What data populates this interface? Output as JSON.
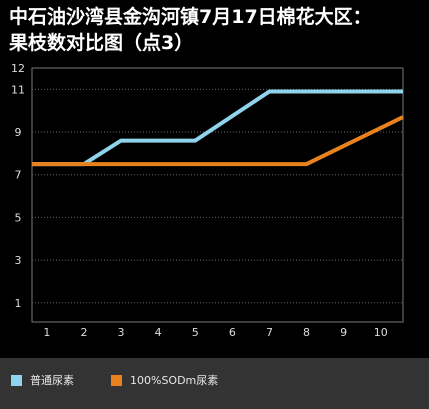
{
  "title": "中石油沙湾县金沟河镇7月17日棉花大区：果枝数对比图（点3）",
  "title_lines": [
    "中石油沙湾县金沟河镇7月17日棉花大区：",
    "果枝数对比图（点3）"
  ],
  "colors": {
    "background": "#000000",
    "plot_border": "#777777",
    "grid": "#666666",
    "series_a": "#8fd3ec",
    "series_b": "#e8821f",
    "tick_text": "#dddddd",
    "legend_bg": "#333333"
  },
  "chart_data": {
    "type": "line",
    "x": [
      1,
      2,
      3,
      4,
      5,
      6,
      7,
      8,
      9,
      10
    ],
    "x_tick_labels": [
      "1",
      "2",
      "3",
      "4",
      "5",
      "6",
      "7",
      "8",
      "9",
      "10"
    ],
    "y_tick_labels": [
      "1",
      "3",
      "5",
      "7",
      "9",
      "11",
      "12"
    ],
    "y_ticks": [
      1,
      3,
      5,
      7,
      9,
      11,
      12
    ],
    "ylim": [
      0.1,
      12
    ],
    "grid": "horizontal dashed",
    "legend_position": "bottom",
    "series": [
      {
        "name": "普通尿素",
        "color": "#8fd3ec",
        "points": [
          [
            0.6,
            7.5
          ],
          [
            2,
            7.5
          ],
          [
            3,
            8.6
          ],
          [
            5,
            8.6
          ],
          [
            7,
            10.9
          ],
          [
            10.6,
            10.9
          ]
        ]
      },
      {
        "name": "100%SODm尿素",
        "color": "#e8821f",
        "points": [
          [
            0.6,
            7.5
          ],
          [
            8,
            7.5
          ],
          [
            10.6,
            9.7
          ]
        ]
      }
    ]
  }
}
